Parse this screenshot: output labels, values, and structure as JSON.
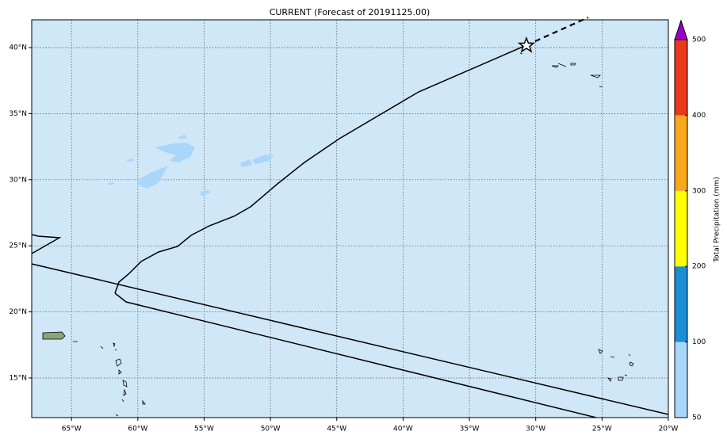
{
  "chart_data": {
    "type": "map",
    "title": "CURRENT (Forecast of 20191125.00)",
    "background": "#cfe7f7",
    "xlim": [
      -68,
      -20
    ],
    "ylim": [
      12,
      42.1
    ],
    "xticks": [
      {
        "value": -65,
        "label": "65°W"
      },
      {
        "value": -60,
        "label": "60°W"
      },
      {
        "value": -55,
        "label": "55°W"
      },
      {
        "value": -50,
        "label": "50°W"
      },
      {
        "value": -45,
        "label": "45°W"
      },
      {
        "value": -40,
        "label": "40°W"
      },
      {
        "value": -35,
        "label": "35°W"
      },
      {
        "value": -30,
        "label": "30°W"
      },
      {
        "value": -25,
        "label": "25°W"
      },
      {
        "value": -20,
        "label": "20°W"
      }
    ],
    "yticks": [
      {
        "value": 15,
        "label": "15°N"
      },
      {
        "value": 20,
        "label": "20°N"
      },
      {
        "value": 25,
        "label": "25°N"
      },
      {
        "value": 30,
        "label": "30°N"
      },
      {
        "value": 35,
        "label": "35°N"
      },
      {
        "value": 40,
        "label": "40°N"
      }
    ],
    "grid": true,
    "colorbar": {
      "label": "Total Precipitation (mm)",
      "levels": [
        50,
        100,
        200,
        300,
        400,
        500
      ],
      "colors": [
        "#a9d6fb",
        "#1a8fd6",
        "#ffff00",
        "#f7a81b",
        "#e8391c"
      ],
      "extend_color": "#9900cc"
    }
  }
}
